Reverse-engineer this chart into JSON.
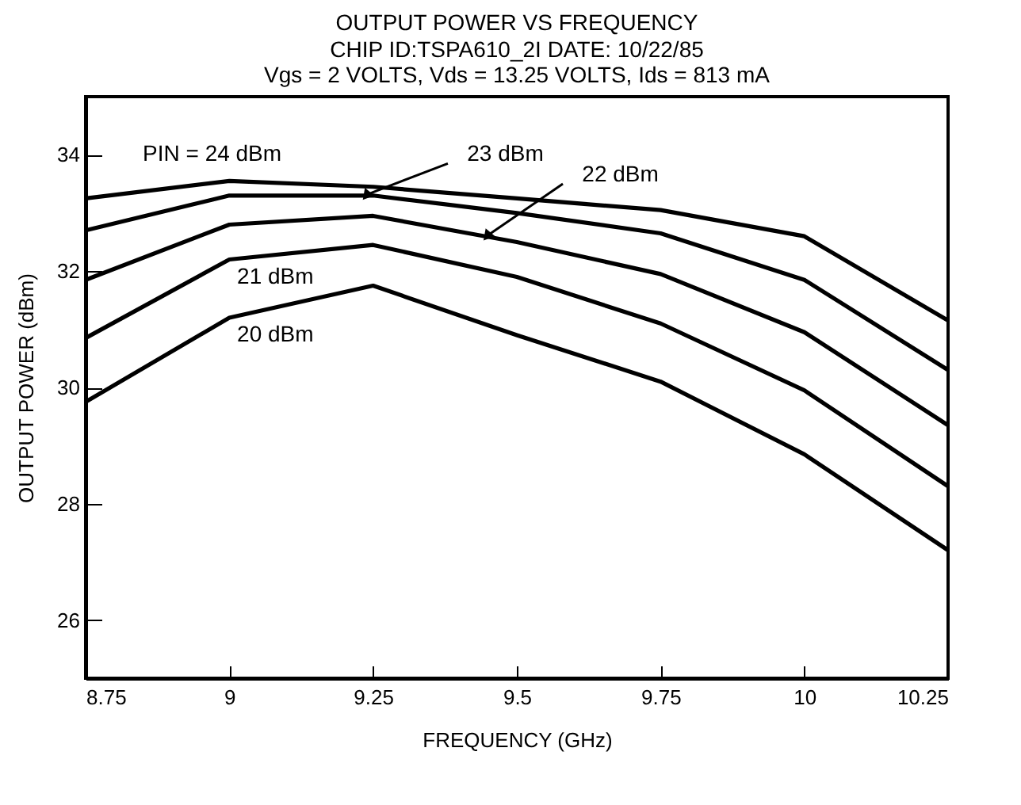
{
  "chart_data": {
    "type": "line",
    "title": "OUTPUT POWER VS FREQUENCY",
    "subtitle": "CHIP ID:TSPA610_2I       DATE:  10/22/85\nVgs = 2 VOLTS,    Vds = 13.25 VOLTS, Ids = 813 mA",
    "xlabel": "FREQUENCY (GHz)",
    "ylabel": "OUTPUT POWER (dBm)",
    "x": [
      8.75,
      9,
      9.25,
      9.5,
      9.75,
      10,
      10.25
    ],
    "series": [
      {
        "name": "PIN = 24 dBm",
        "color": "#000000",
        "values": [
          33.25,
          33.55,
          33.45,
          33.25,
          33.05,
          32.6,
          31.15
        ]
      },
      {
        "name": "23 dBm",
        "color": "#000000",
        "values": [
          32.7,
          33.3,
          33.3,
          33.0,
          32.65,
          31.85,
          30.3
        ]
      },
      {
        "name": "22 dBm",
        "color": "#000000",
        "values": [
          31.85,
          32.8,
          32.95,
          32.5,
          31.95,
          30.95,
          29.35
        ]
      },
      {
        "name": "21 dBm",
        "color": "#000000",
        "values": [
          30.85,
          32.2,
          32.45,
          31.9,
          31.1,
          29.95,
          28.3
        ]
      },
      {
        "name": "20 dBm",
        "color": "#000000",
        "values": [
          29.75,
          31.2,
          31.75,
          30.9,
          30.1,
          28.85,
          27.2
        ]
      }
    ],
    "xlim": [
      8.75,
      10.25
    ],
    "xticks": [
      8.75,
      9,
      9.25,
      9.5,
      9.75,
      10,
      10.25
    ],
    "ylim": [
      25,
      35
    ],
    "yticks": [
      26,
      28,
      30,
      32,
      34
    ],
    "grid": false,
    "legend": false,
    "marker": "none",
    "line_style": "solid"
  }
}
